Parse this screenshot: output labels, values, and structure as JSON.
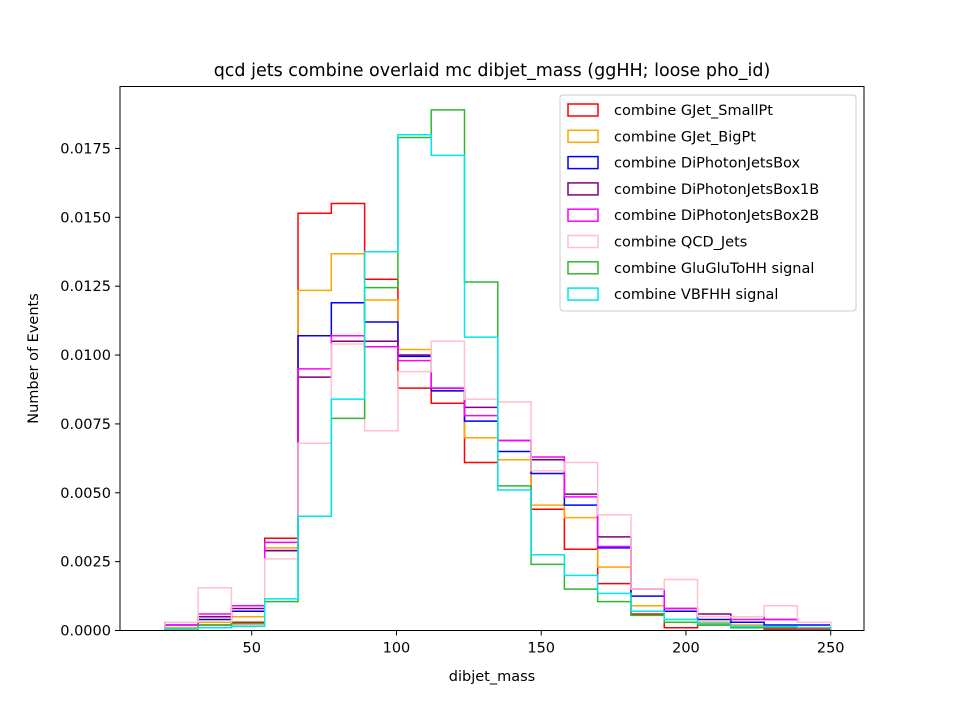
{
  "chart_data": {
    "type": "histogram-step",
    "title": "qcd jets combine overlaid mc dibjet_mass (ggHH; loose pho_id)",
    "xlabel": "dibjet_mass",
    "ylabel": "Number of Events",
    "xlim": [
      4.5,
      261.5
    ],
    "ylim": [
      0,
      0.01975
    ],
    "xticks": [
      50,
      100,
      150,
      200,
      250
    ],
    "xtick_labels": [
      "50",
      "100",
      "150",
      "200",
      "250"
    ],
    "yticks": [
      0,
      0.0025,
      0.005,
      0.0075,
      0.01,
      0.0125,
      0.015,
      0.0175
    ],
    "ytick_labels": [
      "0.0000",
      "0.0025",
      "0.0050",
      "0.0075",
      "0.0100",
      "0.0125",
      "0.0150",
      "0.0175"
    ],
    "grid": false,
    "legend_position": "top-right",
    "bin_edges": [
      20,
      31.5,
      43,
      54.5,
      66,
      77.5,
      89,
      100.5,
      112,
      123.5,
      135,
      146.5,
      158,
      169.5,
      181,
      192.5,
      204,
      215.5,
      227,
      238.5,
      250
    ],
    "series": [
      {
        "name": "combine GJet_SmallPt",
        "color": "#ff0000",
        "values": [
          0.0001,
          0.0002,
          0.0003,
          0.00335,
          0.01515,
          0.0155,
          0.01275,
          0.0088,
          0.00825,
          0.0061,
          0.0062,
          0.0044,
          0.00295,
          0.0017,
          0.0006,
          0.0001,
          0.0002,
          0.0001,
          5e-05,
          5e-05
        ]
      },
      {
        "name": "combine GJet_BigPt",
        "color": "#ffa500",
        "values": [
          0.0001,
          0.0003,
          0.0005,
          0.003,
          0.01235,
          0.01368,
          0.012,
          0.0102,
          0.0087,
          0.007,
          0.0062,
          0.00455,
          0.0041,
          0.0023,
          0.0009,
          0.0004,
          0.0003,
          0.0002,
          0.00015,
          0.0001
        ]
      },
      {
        "name": "combine DiPhotonJetsBox",
        "color": "#0000ff",
        "values": [
          0.0002,
          0.0004,
          0.0007,
          0.0029,
          0.0107,
          0.0119,
          0.0112,
          0.00995,
          0.0087,
          0.0076,
          0.0065,
          0.0057,
          0.00455,
          0.003,
          0.00125,
          0.0007,
          0.0004,
          0.0003,
          0.0002,
          0.0002
        ]
      },
      {
        "name": "combine DiPhotonJetsBox1B",
        "color": "#800080",
        "values": [
          0.0003,
          0.0005,
          0.0008,
          0.0029,
          0.0092,
          0.0105,
          0.0105,
          0.01,
          0.0088,
          0.0081,
          0.0069,
          0.0062,
          0.00495,
          0.0034,
          0.0015,
          0.0008,
          0.0006,
          0.0005,
          0.0004,
          0.0003
        ]
      },
      {
        "name": "combine DiPhotonJetsBox2B",
        "color": "#ff00ff",
        "values": [
          0.0002,
          0.0006,
          0.0009,
          0.0032,
          0.0095,
          0.0107,
          0.0103,
          0.0098,
          0.0088,
          0.0078,
          0.0069,
          0.0063,
          0.00485,
          0.00305,
          0.0015,
          0.0008,
          0.0005,
          0.0004,
          0.0004,
          0.0003
        ]
      },
      {
        "name": "combine QCD_Jets",
        "color": "#ffc0cb",
        "values": [
          0.0003,
          0.00155,
          0.0002,
          0.0026,
          0.0068,
          0.0104,
          0.00725,
          0.0094,
          0.0105,
          0.0084,
          0.0083,
          0.0058,
          0.0061,
          0.0042,
          0.0015,
          0.00185,
          0.0005,
          0.0005,
          0.0009,
          0.0003
        ]
      },
      {
        "name": "combine GluGluToHH signal",
        "color": "#2eb82e",
        "values": [
          5e-05,
          0.0002,
          0.00025,
          0.00105,
          0.00415,
          0.0077,
          0.01245,
          0.0179,
          0.0189,
          0.01265,
          0.00525,
          0.0024,
          0.0015,
          0.00105,
          0.00055,
          0.0003,
          0.0002,
          0.0001,
          0.0001,
          0.0001
        ]
      },
      {
        "name": "combine VBFHH signal",
        "color": "#00e5ee",
        "values": [
          5e-05,
          0.0001,
          0.00015,
          0.00115,
          0.00415,
          0.0084,
          0.01375,
          0.018,
          0.01725,
          0.01065,
          0.0051,
          0.00275,
          0.002,
          0.00135,
          0.0007,
          0.0004,
          0.00025,
          0.00015,
          0.00015,
          0.0001
        ]
      }
    ]
  }
}
